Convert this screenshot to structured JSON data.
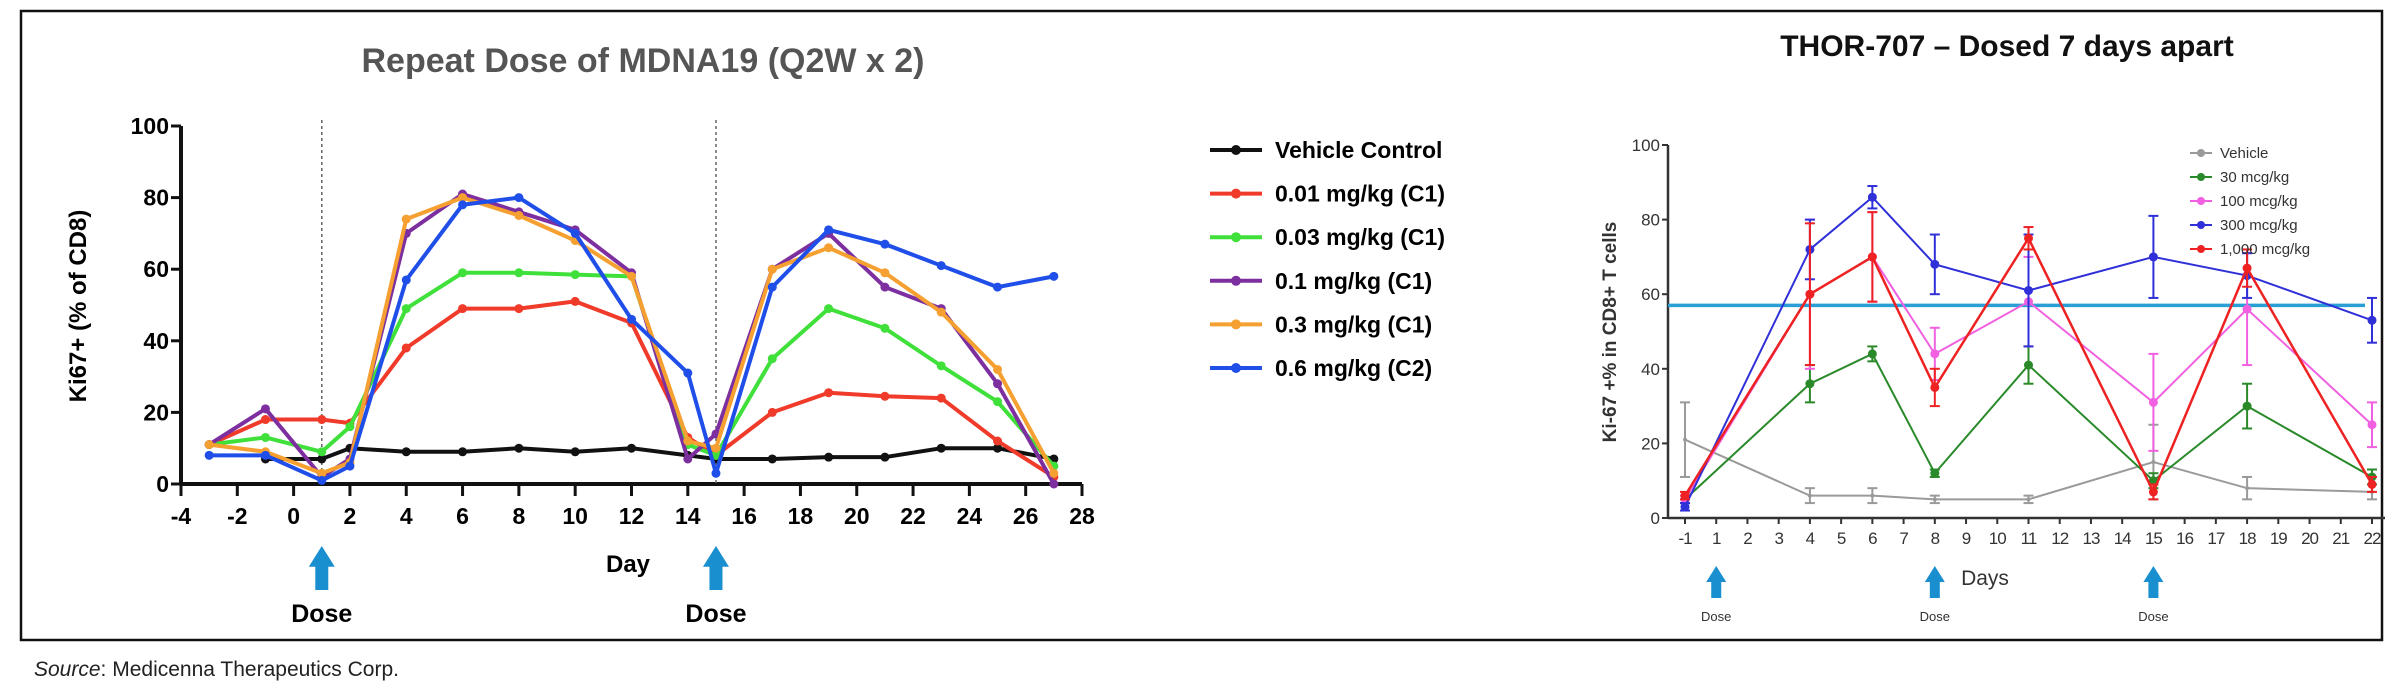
{
  "source": {
    "label": "Source",
    "text": ": Medicenna Therapeutics Corp."
  },
  "chart_data": [
    {
      "type": "line",
      "title": "Repeat Dose of MDNA19 (Q2W x 2)",
      "xlabel": "Day",
      "ylabel": "Ki67+ (% of CD8)",
      "xlim": [
        -4,
        28
      ],
      "ylim": [
        0,
        100
      ],
      "xticks": [
        -4,
        -2,
        0,
        2,
        4,
        6,
        8,
        10,
        12,
        14,
        16,
        18,
        20,
        22,
        24,
        26,
        28
      ],
      "yticks": [
        0,
        20,
        40,
        60,
        80,
        100
      ],
      "dose_days": [
        1,
        15
      ],
      "dose_label": "Dose",
      "legend_position": "right",
      "x": [
        -3,
        -1,
        1,
        2,
        4,
        6,
        8,
        10,
        12,
        14,
        15,
        17,
        19,
        21,
        23,
        25,
        27
      ],
      "series": [
        {
          "name": "Vehicle Control",
          "color": "#111111",
          "values": [
            null,
            7,
            7,
            10,
            9,
            9,
            10,
            9,
            10,
            8,
            7,
            7,
            7.5,
            7.5,
            10,
            10,
            7
          ]
        },
        {
          "name": "0.01 mg/kg (C1)",
          "color": "#f03a2a",
          "values": [
            11,
            18,
            18,
            17,
            38,
            49,
            49,
            51,
            45,
            13,
            8,
            20,
            25.5,
            24.5,
            24,
            12,
            2
          ]
        },
        {
          "name": "0.03 mg/kg (C1)",
          "color": "#3fe03a",
          "values": [
            11,
            13,
            9,
            16,
            49,
            59,
            59,
            58.5,
            58,
            11,
            8,
            35,
            49,
            43.5,
            33,
            23,
            5
          ]
        },
        {
          "name": "0.1 mg/kg (C1)",
          "color": "#7d2fa0",
          "values": [
            11,
            21,
            2,
            7,
            70,
            81,
            76,
            71,
            59,
            7,
            14,
            60,
            70,
            55,
            49,
            28,
            0
          ]
        },
        {
          "name": "0.3 mg/kg (C1)",
          "color": "#f5a030",
          "values": [
            11,
            9,
            3,
            6,
            74,
            80,
            75,
            68,
            58,
            12,
            10,
            60,
            66,
            59,
            48,
            32,
            3
          ]
        },
        {
          "name": "0.6 mg/kg (C2)",
          "color": "#1f4fe8",
          "values": [
            8,
            8,
            1,
            5,
            57,
            78,
            80,
            70,
            46,
            31,
            3,
            55,
            71,
            67,
            61,
            55,
            58
          ]
        }
      ]
    },
    {
      "type": "line",
      "title": "THOR-707 – Dosed 7 days apart",
      "xlabel": "Days",
      "ylabel": "Ki-67 +% in CD8+ T cells",
      "ylim": [
        0,
        100
      ],
      "yticks": [
        0,
        20,
        40,
        60,
        80,
        100
      ],
      "xticks": [
        "-1",
        "1",
        "2",
        "3",
        "4",
        "5",
        "6",
        "7",
        "8",
        "9",
        "10",
        "11",
        "12",
        "13",
        "14",
        "15",
        "16",
        "17",
        "18",
        "19",
        "20",
        "21",
        "22"
      ],
      "dose_days": [
        "1",
        "8",
        "15"
      ],
      "dose_label": "Dose",
      "reference_line": {
        "value": 57,
        "color": "#2a9fd6"
      },
      "legend_position": "top-right",
      "x": [
        "-1",
        "4",
        "6",
        "8",
        "11",
        "15",
        "18",
        "22"
      ],
      "series": [
        {
          "name": "Vehicle",
          "color": "#9a9a9a",
          "marker": "plus",
          "values": [
            21,
            6,
            6,
            5,
            5,
            15,
            8,
            7
          ],
          "error": [
            10,
            2,
            2,
            1,
            1,
            10,
            3,
            2
          ]
        },
        {
          "name": "30 mcg/kg",
          "color": "#2a8a2a",
          "marker": "square",
          "values": [
            5,
            36,
            44,
            12,
            41,
            10,
            30,
            11
          ],
          "error": [
            1,
            5,
            2,
            1,
            5,
            2,
            6,
            2
          ]
        },
        {
          "name": "100 mcg/kg",
          "color": "#f060e0",
          "marker": "triangle",
          "values": [
            5,
            60,
            70,
            44,
            58,
            31,
            56,
            25
          ],
          "error": [
            1,
            20,
            12,
            7,
            12,
            13,
            15,
            6
          ]
        },
        {
          "name": "300 mcg/kg",
          "color": "#3030d8",
          "marker": "circle",
          "values": [
            3,
            72,
            86,
            68,
            61,
            70,
            65,
            53
          ],
          "error": [
            1,
            8,
            3,
            8,
            15,
            11,
            6,
            6
          ]
        },
        {
          "name": "1,000 mcg/kg",
          "color": "#ee2222",
          "marker": "diamond",
          "values": [
            6,
            60,
            70,
            35,
            75,
            7,
            67,
            9
          ],
          "error": [
            1,
            19,
            12,
            5,
            3,
            2,
            5,
            2
          ]
        }
      ]
    }
  ]
}
